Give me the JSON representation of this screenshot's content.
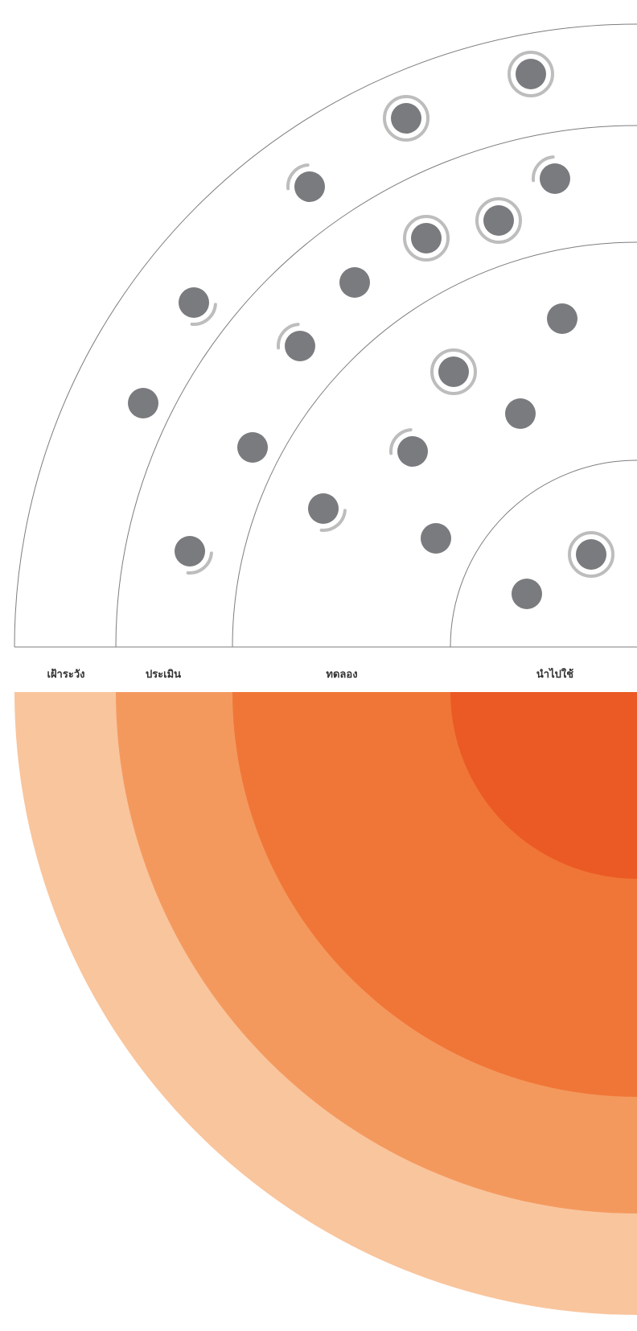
{
  "rings": [
    {
      "key": "hold",
      "label": "เฝ้าระวัง"
    },
    {
      "key": "assess",
      "label": "ประเมิน"
    },
    {
      "key": "trial",
      "label": "ทดลอง"
    },
    {
      "key": "adopt",
      "label": "นำไปใช้"
    }
  ],
  "colors": {
    "line": "#7d7d7d",
    "blip": "#7a7b7e",
    "blip_ring": "#bdbdbd",
    "label": "#333333",
    "band_hold": "#f9c59d",
    "band_assess": "#f4995e",
    "band_trial": "#f07637",
    "band_adopt": "#eb5a24"
  },
  "blips": [
    {
      "ring": "hold",
      "status": "new"
    },
    {
      "ring": "hold",
      "status": "new"
    },
    {
      "ring": "hold",
      "status": "moved-in"
    },
    {
      "ring": "hold",
      "status": "moved-out"
    },
    {
      "ring": "hold",
      "status": "no-change"
    },
    {
      "ring": "hold",
      "status": "moved-out"
    },
    {
      "ring": "assess",
      "status": "moved-in"
    },
    {
      "ring": "assess",
      "status": "new"
    },
    {
      "ring": "assess",
      "status": "new"
    },
    {
      "ring": "assess",
      "status": "no-change"
    },
    {
      "ring": "assess",
      "status": "moved-in"
    },
    {
      "ring": "assess",
      "status": "no-change"
    },
    {
      "ring": "assess",
      "status": "moved-out"
    },
    {
      "ring": "trial",
      "status": "no-change"
    },
    {
      "ring": "trial",
      "status": "new"
    },
    {
      "ring": "trial",
      "status": "no-change"
    },
    {
      "ring": "trial",
      "status": "moved-in"
    },
    {
      "ring": "trial",
      "status": "no-change"
    },
    {
      "ring": "adopt",
      "status": "new"
    },
    {
      "ring": "adopt",
      "status": "no-change"
    }
  ]
}
